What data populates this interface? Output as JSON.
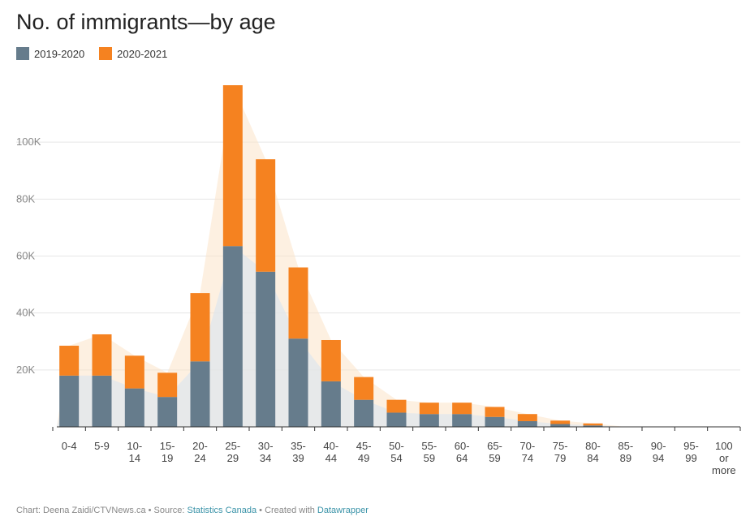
{
  "chart_data": {
    "type": "bar",
    "stacked": true,
    "title": "No. of immigrants—by age",
    "categories": [
      [
        "0-4"
      ],
      [
        "5-9"
      ],
      [
        "10-",
        "14"
      ],
      [
        "15-",
        "19"
      ],
      [
        "20-",
        "24"
      ],
      [
        "25-",
        "29"
      ],
      [
        "30-",
        "34"
      ],
      [
        "35-",
        "39"
      ],
      [
        "40-",
        "44"
      ],
      [
        "45-",
        "49"
      ],
      [
        "50-",
        "54"
      ],
      [
        "55-",
        "59"
      ],
      [
        "60-",
        "64"
      ],
      [
        "65-",
        "59"
      ],
      [
        "70-",
        "74"
      ],
      [
        "75-",
        "79"
      ],
      [
        "80-",
        "84"
      ],
      [
        "85-",
        "89"
      ],
      [
        "90-",
        "94"
      ],
      [
        "95-",
        "99"
      ],
      [
        "100",
        "or",
        "more"
      ]
    ],
    "series": [
      {
        "name": "2019-2020",
        "color": "#667c8c",
        "values": [
          18000,
          18000,
          13500,
          10500,
          23000,
          63500,
          54500,
          31000,
          16000,
          9500,
          5000,
          4500,
          4500,
          3500,
          2000,
          1000,
          500,
          0,
          0,
          0,
          0
        ]
      },
      {
        "name": "2020-2021",
        "color": "#f58220",
        "values": [
          10500,
          14500,
          11500,
          8500,
          24000,
          56500,
          39500,
          25000,
          14500,
          8000,
          4500,
          4000,
          4000,
          3500,
          2500,
          1200,
          700,
          0,
          0,
          0,
          0
        ]
      }
    ],
    "ylim": [
      0,
      120000
    ],
    "yticks": [
      20000,
      40000,
      60000,
      80000,
      100000
    ],
    "ytick_labels": [
      "20K",
      "40K",
      "60K",
      "80K",
      "100K"
    ],
    "grid": true,
    "legend_position": "top-left"
  },
  "footer": {
    "prefix": "Chart: Deena Zaidi/CTVNews.ca • Source: ",
    "source_link": "Statistics Canada",
    "middle": " • Created with ",
    "tool_link": "Datawrapper"
  }
}
